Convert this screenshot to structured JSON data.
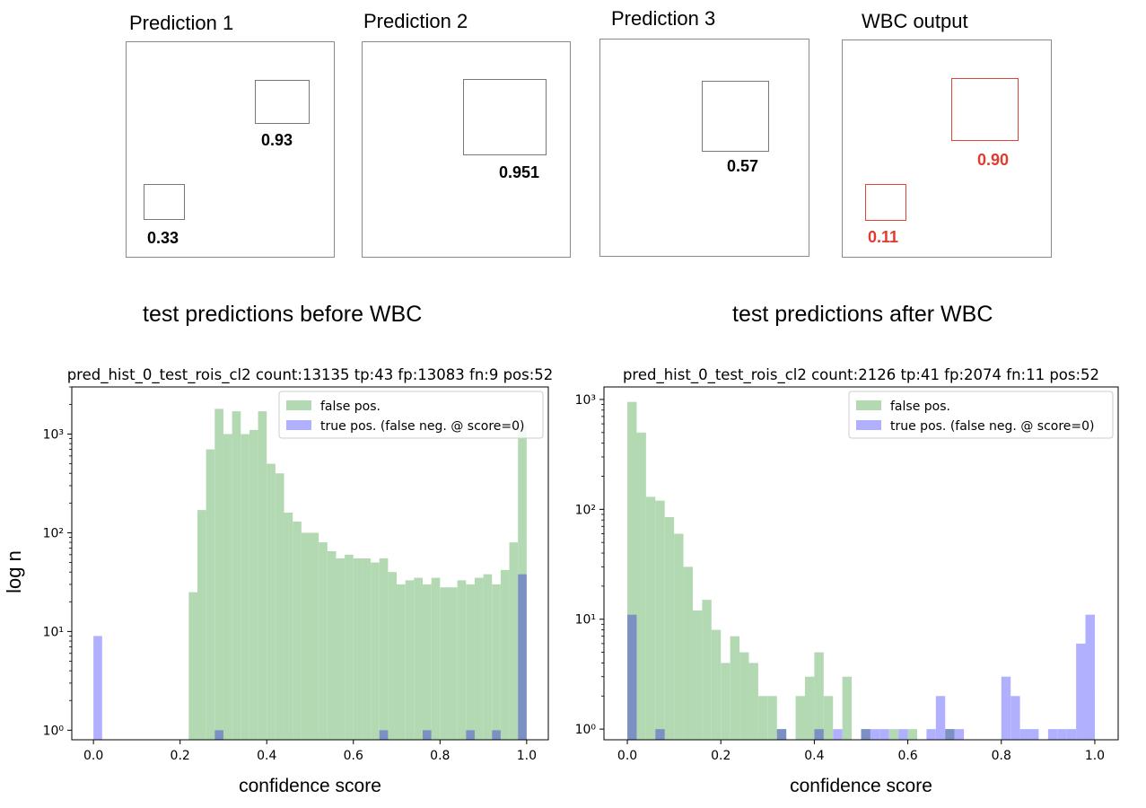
{
  "prediction_panels": [
    {
      "title": "Prediction 1",
      "boxes": [
        {
          "score": "0.93",
          "color": "#777777"
        },
        {
          "score": "0.33",
          "color": "#777777"
        }
      ]
    },
    {
      "title": "Prediction 2",
      "boxes": [
        {
          "score": "0.951",
          "color": "#777777"
        }
      ]
    },
    {
      "title": "Prediction 3",
      "boxes": [
        {
          "score": "0.57",
          "color": "#777777"
        }
      ]
    },
    {
      "title": "WBC output",
      "boxes": [
        {
          "score": "0.90",
          "color": "#e23a2f"
        },
        {
          "score": "0.11",
          "color": "#e23a2f"
        }
      ]
    }
  ],
  "headings": {
    "before": "test predictions before WBC",
    "after": "test predictions after WBC"
  },
  "shared_ylabel": "log n",
  "colors": {
    "false_pos": "#b3d9b3",
    "true_pos": "#b0b0ff",
    "overlap": "#7d90c4"
  },
  "chart_data": [
    {
      "type": "bar",
      "title": "pred_hist_0_test_rois_cl2 count:13135 tp:43 fp:13083 fn:9 pos:52",
      "xlabel": "confidence score",
      "ylabel": "log n",
      "yscale": "log",
      "xlim": [
        -0.05,
        1.05
      ],
      "ylim": [
        0.8,
        3000
      ],
      "xticks": [
        "0.0",
        "0.2",
        "0.4",
        "0.6",
        "0.8",
        "1.0"
      ],
      "yticks": [
        "10⁰",
        "10¹",
        "10²",
        "10³"
      ],
      "legend_position": "top-right",
      "bin_width": 0.02,
      "series": [
        {
          "name": "false pos.",
          "color": "#b3d9b3",
          "x": [
            0.22,
            0.24,
            0.26,
            0.28,
            0.3,
            0.32,
            0.34,
            0.36,
            0.38,
            0.4,
            0.42,
            0.44,
            0.46,
            0.48,
            0.5,
            0.52,
            0.54,
            0.56,
            0.58,
            0.6,
            0.62,
            0.64,
            0.66,
            0.68,
            0.7,
            0.72,
            0.74,
            0.76,
            0.78,
            0.8,
            0.82,
            0.84,
            0.86,
            0.88,
            0.9,
            0.92,
            0.94,
            0.96,
            0.98
          ],
          "y": [
            25,
            170,
            700,
            1800,
            1000,
            1700,
            1000,
            1100,
            1700,
            500,
            400,
            160,
            130,
            100,
            100,
            80,
            65,
            55,
            60,
            55,
            55,
            50,
            55,
            40,
            30,
            33,
            35,
            30,
            35,
            28,
            28,
            33,
            30,
            35,
            38,
            30,
            42,
            80,
            1200
          ]
        },
        {
          "name": "true pos. (false neg. @ score=0)",
          "color": "#b0b0ff",
          "x": [
            0.0,
            0.28,
            0.66,
            0.76,
            0.86,
            0.92,
            0.98
          ],
          "y": [
            9,
            1,
            1,
            1,
            1,
            1,
            38
          ]
        }
      ]
    },
    {
      "type": "bar",
      "title": "pred_hist_0_test_rois_cl2 count:2126 tp:41 fp:2074 fn:11 pos:52",
      "xlabel": "confidence score",
      "ylabel": "",
      "yscale": "log",
      "xlim": [
        -0.05,
        1.05
      ],
      "ylim": [
        0.8,
        1300
      ],
      "xticks": [
        "0.0",
        "0.2",
        "0.4",
        "0.6",
        "0.8",
        "1.0"
      ],
      "yticks": [
        "10⁰",
        "10¹",
        "10²",
        "10³"
      ],
      "legend_position": "top-right",
      "bin_width": 0.02,
      "series": [
        {
          "name": "false pos.",
          "color": "#b3d9b3",
          "x": [
            0.0,
            0.02,
            0.04,
            0.06,
            0.08,
            0.1,
            0.12,
            0.14,
            0.16,
            0.18,
            0.2,
            0.22,
            0.24,
            0.26,
            0.28,
            0.3,
            0.32,
            0.34,
            0.36,
            0.38,
            0.4,
            0.42,
            0.44,
            0.46,
            0.48,
            0.5,
            0.52,
            0.54,
            0.56,
            0.58,
            0.6,
            0.62,
            0.64,
            0.66,
            0.68,
            0.7,
            0.72,
            0.74,
            0.76,
            0.78,
            0.8,
            0.82,
            0.84,
            0.86,
            0.88,
            0.9,
            0.92,
            0.94,
            0.96,
            0.98
          ],
          "y": [
            950,
            500,
            130,
            120,
            85,
            60,
            30,
            12,
            15,
            8,
            4,
            7,
            5,
            4,
            2,
            2,
            1,
            0,
            2,
            3,
            5,
            2,
            0,
            3,
            0,
            1,
            0,
            0,
            1,
            0,
            1,
            0,
            0,
            0,
            1,
            0,
            0,
            0,
            0,
            0,
            0,
            0,
            0,
            0,
            0,
            0,
            0,
            0,
            0,
            2
          ]
        },
        {
          "name": "true pos. (false neg. @ score=0)",
          "color": "#b0b0ff",
          "x": [
            0.0,
            0.06,
            0.32,
            0.4,
            0.44,
            0.5,
            0.52,
            0.54,
            0.58,
            0.64,
            0.66,
            0.68,
            0.7,
            0.8,
            0.82,
            0.84,
            0.86,
            0.9,
            0.92,
            0.94,
            0.96,
            0.98
          ],
          "y": [
            11,
            1,
            1,
            1,
            1,
            1,
            1,
            1,
            1,
            1,
            2,
            1,
            1,
            3,
            2,
            1,
            1,
            1,
            1,
            1,
            6,
            11
          ]
        }
      ]
    }
  ]
}
